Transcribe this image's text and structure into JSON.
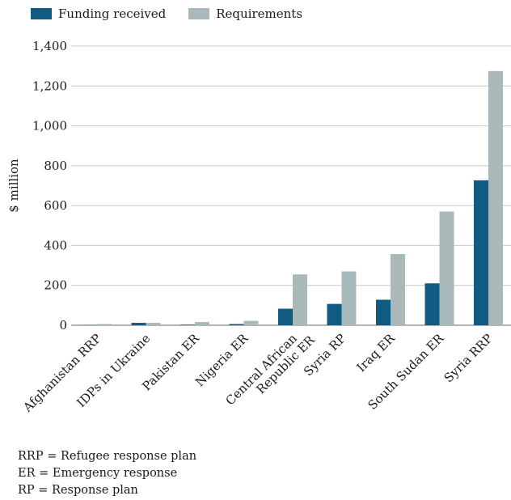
{
  "chart_data": {
    "type": "bar",
    "ylabel": "$ million",
    "ylim": [
      0,
      1400
    ],
    "yticks": [
      0,
      200,
      400,
      600,
      800,
      1000,
      1200,
      1400
    ],
    "ytick_labels": [
      "0",
      "200",
      "400",
      "600",
      "800",
      "1,000",
      "1,200",
      "1,400"
    ],
    "grid": true,
    "legend_position": "top-left",
    "categories": [
      "Afghanistan RRP",
      "IDPs in Ukraine",
      "Pakistan ER",
      "Nigeria ER",
      "Central African Republic ER",
      "Syria RP",
      "Iraq ER",
      "South Sudan ER",
      "Syria RRP"
    ],
    "category_lines": [
      [
        "Afghanistan RRP"
      ],
      [
        "IDPs in Ukraine"
      ],
      [
        "Pakistan ER"
      ],
      [
        "Nigeria ER"
      ],
      [
        "Central African",
        "Republic ER"
      ],
      [
        "Syria RP"
      ],
      [
        "Iraq ER"
      ],
      [
        "South Sudan ER"
      ],
      [
        "Syria RRP"
      ]
    ],
    "series": [
      {
        "name": "Funding received",
        "color": "#0f5b82",
        "values": [
          2,
          12,
          3,
          6,
          83,
          107,
          128,
          210,
          727
        ]
      },
      {
        "name": "Requirements",
        "color": "#a9b9ba",
        "values": [
          6,
          12,
          16,
          22,
          255,
          270,
          357,
          570,
          1275
        ]
      }
    ]
  },
  "notes": [
    "RRP = Refugee response plan",
    "ER = Emergency response",
    "RP = Response plan"
  ]
}
